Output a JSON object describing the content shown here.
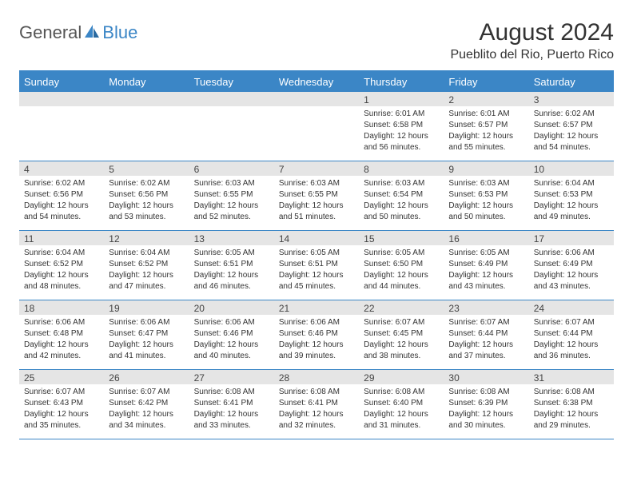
{
  "brand": {
    "part1": "General",
    "part2": "Blue"
  },
  "title": "August 2024",
  "subtitle": "Pueblito del Rio, Puerto Rico",
  "colors": {
    "accent": "#3b86c6",
    "band": "#e5e5e5",
    "text": "#333333",
    "bg": "#ffffff"
  },
  "days_of_week": [
    "Sunday",
    "Monday",
    "Tuesday",
    "Wednesday",
    "Thursday",
    "Friday",
    "Saturday"
  ],
  "weeks": [
    [
      {
        "num": "",
        "sunrise": "",
        "sunset": "",
        "daylight": ""
      },
      {
        "num": "",
        "sunrise": "",
        "sunset": "",
        "daylight": ""
      },
      {
        "num": "",
        "sunrise": "",
        "sunset": "",
        "daylight": ""
      },
      {
        "num": "",
        "sunrise": "",
        "sunset": "",
        "daylight": ""
      },
      {
        "num": "1",
        "sunrise": "Sunrise: 6:01 AM",
        "sunset": "Sunset: 6:58 PM",
        "daylight": "Daylight: 12 hours and 56 minutes."
      },
      {
        "num": "2",
        "sunrise": "Sunrise: 6:01 AM",
        "sunset": "Sunset: 6:57 PM",
        "daylight": "Daylight: 12 hours and 55 minutes."
      },
      {
        "num": "3",
        "sunrise": "Sunrise: 6:02 AM",
        "sunset": "Sunset: 6:57 PM",
        "daylight": "Daylight: 12 hours and 54 minutes."
      }
    ],
    [
      {
        "num": "4",
        "sunrise": "Sunrise: 6:02 AM",
        "sunset": "Sunset: 6:56 PM",
        "daylight": "Daylight: 12 hours and 54 minutes."
      },
      {
        "num": "5",
        "sunrise": "Sunrise: 6:02 AM",
        "sunset": "Sunset: 6:56 PM",
        "daylight": "Daylight: 12 hours and 53 minutes."
      },
      {
        "num": "6",
        "sunrise": "Sunrise: 6:03 AM",
        "sunset": "Sunset: 6:55 PM",
        "daylight": "Daylight: 12 hours and 52 minutes."
      },
      {
        "num": "7",
        "sunrise": "Sunrise: 6:03 AM",
        "sunset": "Sunset: 6:55 PM",
        "daylight": "Daylight: 12 hours and 51 minutes."
      },
      {
        "num": "8",
        "sunrise": "Sunrise: 6:03 AM",
        "sunset": "Sunset: 6:54 PM",
        "daylight": "Daylight: 12 hours and 50 minutes."
      },
      {
        "num": "9",
        "sunrise": "Sunrise: 6:03 AM",
        "sunset": "Sunset: 6:53 PM",
        "daylight": "Daylight: 12 hours and 50 minutes."
      },
      {
        "num": "10",
        "sunrise": "Sunrise: 6:04 AM",
        "sunset": "Sunset: 6:53 PM",
        "daylight": "Daylight: 12 hours and 49 minutes."
      }
    ],
    [
      {
        "num": "11",
        "sunrise": "Sunrise: 6:04 AM",
        "sunset": "Sunset: 6:52 PM",
        "daylight": "Daylight: 12 hours and 48 minutes."
      },
      {
        "num": "12",
        "sunrise": "Sunrise: 6:04 AM",
        "sunset": "Sunset: 6:52 PM",
        "daylight": "Daylight: 12 hours and 47 minutes."
      },
      {
        "num": "13",
        "sunrise": "Sunrise: 6:05 AM",
        "sunset": "Sunset: 6:51 PM",
        "daylight": "Daylight: 12 hours and 46 minutes."
      },
      {
        "num": "14",
        "sunrise": "Sunrise: 6:05 AM",
        "sunset": "Sunset: 6:51 PM",
        "daylight": "Daylight: 12 hours and 45 minutes."
      },
      {
        "num": "15",
        "sunrise": "Sunrise: 6:05 AM",
        "sunset": "Sunset: 6:50 PM",
        "daylight": "Daylight: 12 hours and 44 minutes."
      },
      {
        "num": "16",
        "sunrise": "Sunrise: 6:05 AM",
        "sunset": "Sunset: 6:49 PM",
        "daylight": "Daylight: 12 hours and 43 minutes."
      },
      {
        "num": "17",
        "sunrise": "Sunrise: 6:06 AM",
        "sunset": "Sunset: 6:49 PM",
        "daylight": "Daylight: 12 hours and 43 minutes."
      }
    ],
    [
      {
        "num": "18",
        "sunrise": "Sunrise: 6:06 AM",
        "sunset": "Sunset: 6:48 PM",
        "daylight": "Daylight: 12 hours and 42 minutes."
      },
      {
        "num": "19",
        "sunrise": "Sunrise: 6:06 AM",
        "sunset": "Sunset: 6:47 PM",
        "daylight": "Daylight: 12 hours and 41 minutes."
      },
      {
        "num": "20",
        "sunrise": "Sunrise: 6:06 AM",
        "sunset": "Sunset: 6:46 PM",
        "daylight": "Daylight: 12 hours and 40 minutes."
      },
      {
        "num": "21",
        "sunrise": "Sunrise: 6:06 AM",
        "sunset": "Sunset: 6:46 PM",
        "daylight": "Daylight: 12 hours and 39 minutes."
      },
      {
        "num": "22",
        "sunrise": "Sunrise: 6:07 AM",
        "sunset": "Sunset: 6:45 PM",
        "daylight": "Daylight: 12 hours and 38 minutes."
      },
      {
        "num": "23",
        "sunrise": "Sunrise: 6:07 AM",
        "sunset": "Sunset: 6:44 PM",
        "daylight": "Daylight: 12 hours and 37 minutes."
      },
      {
        "num": "24",
        "sunrise": "Sunrise: 6:07 AM",
        "sunset": "Sunset: 6:44 PM",
        "daylight": "Daylight: 12 hours and 36 minutes."
      }
    ],
    [
      {
        "num": "25",
        "sunrise": "Sunrise: 6:07 AM",
        "sunset": "Sunset: 6:43 PM",
        "daylight": "Daylight: 12 hours and 35 minutes."
      },
      {
        "num": "26",
        "sunrise": "Sunrise: 6:07 AM",
        "sunset": "Sunset: 6:42 PM",
        "daylight": "Daylight: 12 hours and 34 minutes."
      },
      {
        "num": "27",
        "sunrise": "Sunrise: 6:08 AM",
        "sunset": "Sunset: 6:41 PM",
        "daylight": "Daylight: 12 hours and 33 minutes."
      },
      {
        "num": "28",
        "sunrise": "Sunrise: 6:08 AM",
        "sunset": "Sunset: 6:41 PM",
        "daylight": "Daylight: 12 hours and 32 minutes."
      },
      {
        "num": "29",
        "sunrise": "Sunrise: 6:08 AM",
        "sunset": "Sunset: 6:40 PM",
        "daylight": "Daylight: 12 hours and 31 minutes."
      },
      {
        "num": "30",
        "sunrise": "Sunrise: 6:08 AM",
        "sunset": "Sunset: 6:39 PM",
        "daylight": "Daylight: 12 hours and 30 minutes."
      },
      {
        "num": "31",
        "sunrise": "Sunrise: 6:08 AM",
        "sunset": "Sunset: 6:38 PM",
        "daylight": "Daylight: 12 hours and 29 minutes."
      }
    ]
  ]
}
